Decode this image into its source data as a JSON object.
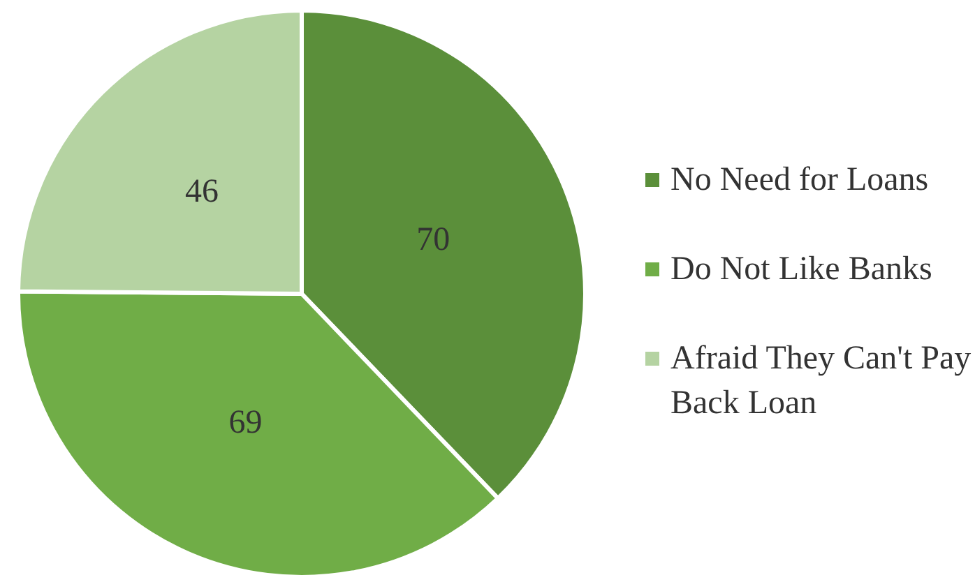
{
  "chart_data": {
    "type": "pie",
    "categories": [
      "No Need for Loans",
      "Do Not Like Banks",
      "Afraid They Can't Pay Back Loan"
    ],
    "values": [
      70,
      69,
      46
    ],
    "colors": [
      "#5b8f3a",
      "#70ad47",
      "#b5d3a2"
    ],
    "data_labels": true,
    "legend": "right"
  }
}
